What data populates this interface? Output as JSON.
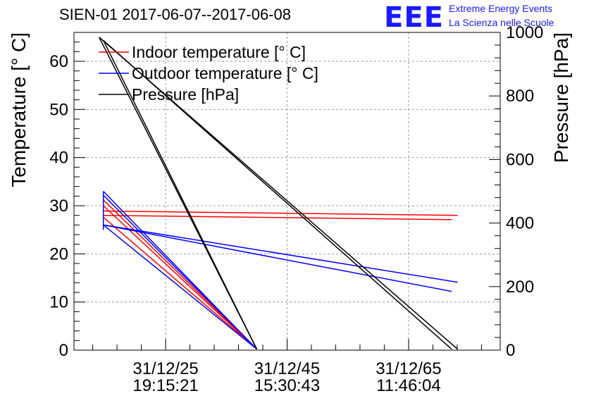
{
  "header": {
    "title": "SIEN-01 2017-06-07--2017-06-08",
    "logo_text": "EEE",
    "org_line1": "Extreme Energy Events",
    "org_line2": "La Scienza nelle Scuole"
  },
  "chart_data": {
    "type": "line",
    "title": "SIEN-01 2017-06-07--2017-06-08",
    "ylabel_left": "Temperature [° C]",
    "ylabel_right": "Pressure [hPa]",
    "ylim_left": [
      0,
      66
    ],
    "ylim_right": [
      0,
      1000
    ],
    "xlim": [
      0,
      1
    ],
    "grid": true,
    "x_tick_positions": [
      0.215,
      0.5,
      0.785
    ],
    "x_tick_labels": [
      {
        "date": "31/12/25",
        "time": "19:15:21"
      },
      {
        "date": "31/12/45",
        "time": "15:30:43"
      },
      {
        "date": "31/12/65",
        "time": "11:46:04"
      }
    ],
    "y_ticks_left": [
      0,
      10,
      20,
      30,
      40,
      50,
      60
    ],
    "y_ticks_right": [
      0,
      200,
      400,
      600,
      800,
      1000
    ],
    "legend": {
      "position": "top-left",
      "entries": [
        {
          "label": "Indoor temperature [° C]",
          "color": "#ff0000"
        },
        {
          "label": "Outdoor temperature [° C]",
          "color": "#0000ff"
        },
        {
          "label": "Pressure [hPa]",
          "color": "#000000"
        }
      ]
    },
    "series": [
      {
        "name": "Indoor temperature [° C]",
        "axis": "left",
        "color": "#ff0000",
        "segments": [
          [
            [
              0.069,
              28.9
            ],
            [
              0.9,
              28.0
            ]
          ],
          [
            [
              0.069,
              28.0
            ],
            [
              0.886,
              27.1
            ]
          ],
          [
            [
              0.069,
              31.2
            ],
            [
              0.429,
              0.2
            ]
          ],
          [
            [
              0.069,
              30.0
            ],
            [
              0.429,
              0.2
            ]
          ],
          [
            [
              0.069,
              27.6
            ],
            [
              0.429,
              0.2
            ]
          ]
        ]
      },
      {
        "name": "Outdoor temperature [° C]",
        "axis": "left",
        "color": "#0000ff",
        "segments": [
          [
            [
              0.069,
              26.0
            ],
            [
              0.9,
              14.1
            ]
          ],
          [
            [
              0.069,
              26.0
            ],
            [
              0.886,
              12.2
            ]
          ],
          [
            [
              0.069,
              33.0
            ],
            [
              0.429,
              0.2
            ]
          ],
          [
            [
              0.069,
              32.2
            ],
            [
              0.429,
              0.2
            ]
          ],
          [
            [
              0.069,
              26.0
            ],
            [
              0.429,
              0.2
            ]
          ],
          [
            [
              0.069,
              25.0
            ],
            [
              0.069,
              33.0
            ]
          ]
        ]
      },
      {
        "name": "Pressure [hPa]",
        "axis": "right",
        "color": "#000000",
        "segments": [
          [
            [
              0.059,
              985
            ],
            [
              0.9,
              3
            ]
          ],
          [
            [
              0.069,
              975
            ],
            [
              0.886,
              3
            ]
          ],
          [
            [
              0.059,
              985
            ],
            [
              0.429,
              3
            ]
          ],
          [
            [
              0.069,
              975
            ],
            [
              0.429,
              3
            ]
          ]
        ]
      }
    ]
  }
}
